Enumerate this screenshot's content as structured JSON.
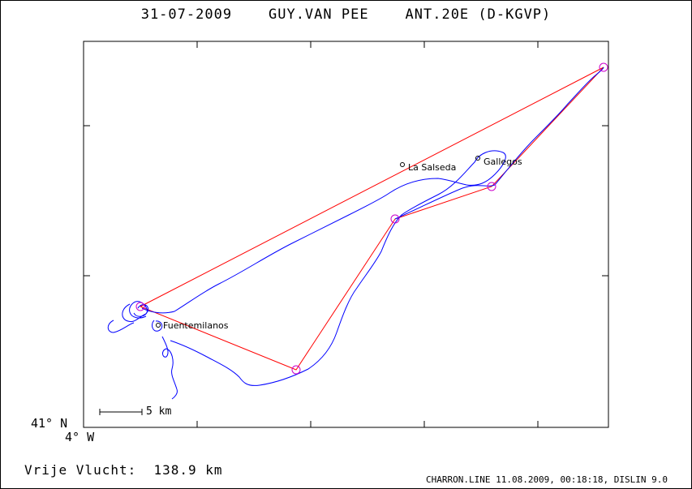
{
  "title": "31-07-2009    GUY.VAN PEE    ANT.20E (D-KGVP)",
  "lat_label": "41° N",
  "lon_label": "4° W",
  "scale_label": "5 km",
  "distance_label": "Vrije Vlucht:  138.9 km",
  "footer": "CHARRON.LINE 11.08.2009, 00:18:18, DISLIN 9.0",
  "towns": [
    {
      "name": "La Salseda"
    },
    {
      "name": "Gallegos"
    },
    {
      "name": "Fuentemilanos"
    }
  ],
  "colors": {
    "track": "#0000ff",
    "task": "#ff0000",
    "turnpoint": "#cc00cc",
    "frame": "#000000"
  }
}
